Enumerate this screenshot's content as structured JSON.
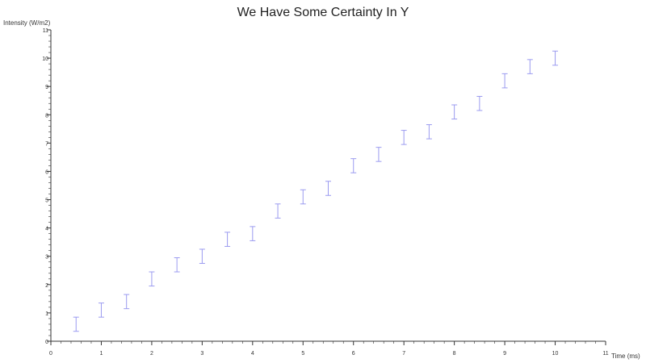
{
  "chart_data": {
    "type": "scatter",
    "title": "We Have Some Certainty In Y",
    "xlabel": "Time (ms)",
    "ylabel": "Intensity (W/m2)",
    "xlim": [
      0,
      11
    ],
    "ylim": [
      0,
      11
    ],
    "x_ticks": [
      "0",
      "1",
      "2",
      "3",
      "4",
      "5",
      "6",
      "7",
      "8",
      "9",
      "10",
      "11"
    ],
    "y_ticks": [
      "0",
      "1",
      "2",
      "3",
      "4",
      "5",
      "6",
      "7",
      "8",
      "9",
      "10",
      "11"
    ],
    "minor_ticks_per_major": 5,
    "grid": false,
    "error_bar_color": "#9b9bf0",
    "points": [
      {
        "x": 0.5,
        "low": 0.35,
        "high": 0.85
      },
      {
        "x": 1.0,
        "low": 0.85,
        "high": 1.35
      },
      {
        "x": 1.5,
        "low": 1.15,
        "high": 1.65
      },
      {
        "x": 2.0,
        "low": 1.95,
        "high": 2.45
      },
      {
        "x": 2.5,
        "low": 2.45,
        "high": 2.95
      },
      {
        "x": 3.0,
        "low": 2.75,
        "high": 3.25
      },
      {
        "x": 3.5,
        "low": 3.35,
        "high": 3.85
      },
      {
        "x": 4.0,
        "low": 3.55,
        "high": 4.05
      },
      {
        "x": 4.5,
        "low": 4.35,
        "high": 4.85
      },
      {
        "x": 5.0,
        "low": 4.85,
        "high": 5.35
      },
      {
        "x": 5.5,
        "low": 5.15,
        "high": 5.65
      },
      {
        "x": 6.0,
        "low": 5.95,
        "high": 6.45
      },
      {
        "x": 6.5,
        "low": 6.35,
        "high": 6.85
      },
      {
        "x": 7.0,
        "low": 6.95,
        "high": 7.45
      },
      {
        "x": 7.5,
        "low": 7.15,
        "high": 7.65
      },
      {
        "x": 8.0,
        "low": 7.85,
        "high": 8.35
      },
      {
        "x": 8.5,
        "low": 8.15,
        "high": 8.65
      },
      {
        "x": 9.0,
        "low": 8.95,
        "high": 9.45
      },
      {
        "x": 9.5,
        "low": 9.45,
        "high": 9.95
      },
      {
        "x": 10.0,
        "low": 9.75,
        "high": 10.25
      }
    ]
  }
}
